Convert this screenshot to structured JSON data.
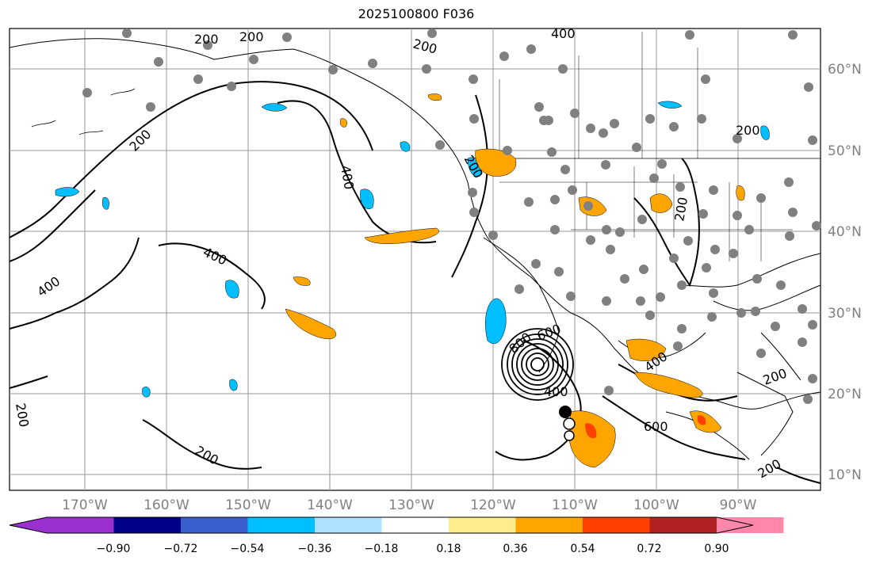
{
  "title": "2025100800 F036",
  "lon_labels": [
    "170°W",
    "160°W",
    "150°W",
    "140°W",
    "130°W",
    "120°W",
    "110°W",
    "100°W",
    "90°W"
  ],
  "lat_labels": [
    "60°N",
    "50°N",
    "40°N",
    "30°N",
    "20°N",
    "10°N"
  ],
  "colorbar": {
    "tick_labels": [
      "−0.90",
      "−0.72",
      "−0.54",
      "−0.36",
      "−0.18",
      "0.18",
      "0.36",
      "0.54",
      "0.72",
      "0.90"
    ],
    "colors": [
      "#9b30d0",
      "#00008b",
      "#3a5fcd",
      "#00bfff",
      "#b0e0ff",
      "#ffffff",
      "#ffec8b",
      "#ffa500",
      "#ff4000",
      "#b22222",
      "#ff88aa"
    ]
  },
  "contour_labels": [
    {
      "text": "200",
      "id": "c200-a"
    },
    {
      "text": "200",
      "id": "c200-b"
    },
    {
      "text": "200",
      "id": "c200-c"
    },
    {
      "text": "400",
      "id": "c400-a"
    },
    {
      "text": "200",
      "id": "c200-d"
    },
    {
      "text": "400",
      "id": "c400-b"
    },
    {
      "text": "400",
      "id": "c400-c"
    },
    {
      "text": "400",
      "id": "c400-d"
    },
    {
      "text": "200",
      "id": "c200-e"
    },
    {
      "text": "200",
      "id": "c200-f"
    },
    {
      "text": "200",
      "id": "c200-g"
    },
    {
      "text": "200",
      "id": "c200-h"
    },
    {
      "text": "800",
      "id": "c800"
    },
    {
      "text": "600",
      "id": "c600-a"
    },
    {
      "text": "400",
      "id": "c400-e"
    },
    {
      "text": "400",
      "id": "c400-f"
    },
    {
      "text": "600",
      "id": "c600-b"
    },
    {
      "text": "200",
      "id": "c200-i"
    },
    {
      "text": "200",
      "id": "c200-j"
    },
    {
      "text": "200",
      "id": "c200-k"
    }
  ],
  "colors": {
    "gridline": "#999999",
    "coastline": "#000000",
    "axis_label": "#808080",
    "station_dot": "#808080",
    "positive_shade": "#ffa500",
    "negative_shade": "#00bfff"
  }
}
